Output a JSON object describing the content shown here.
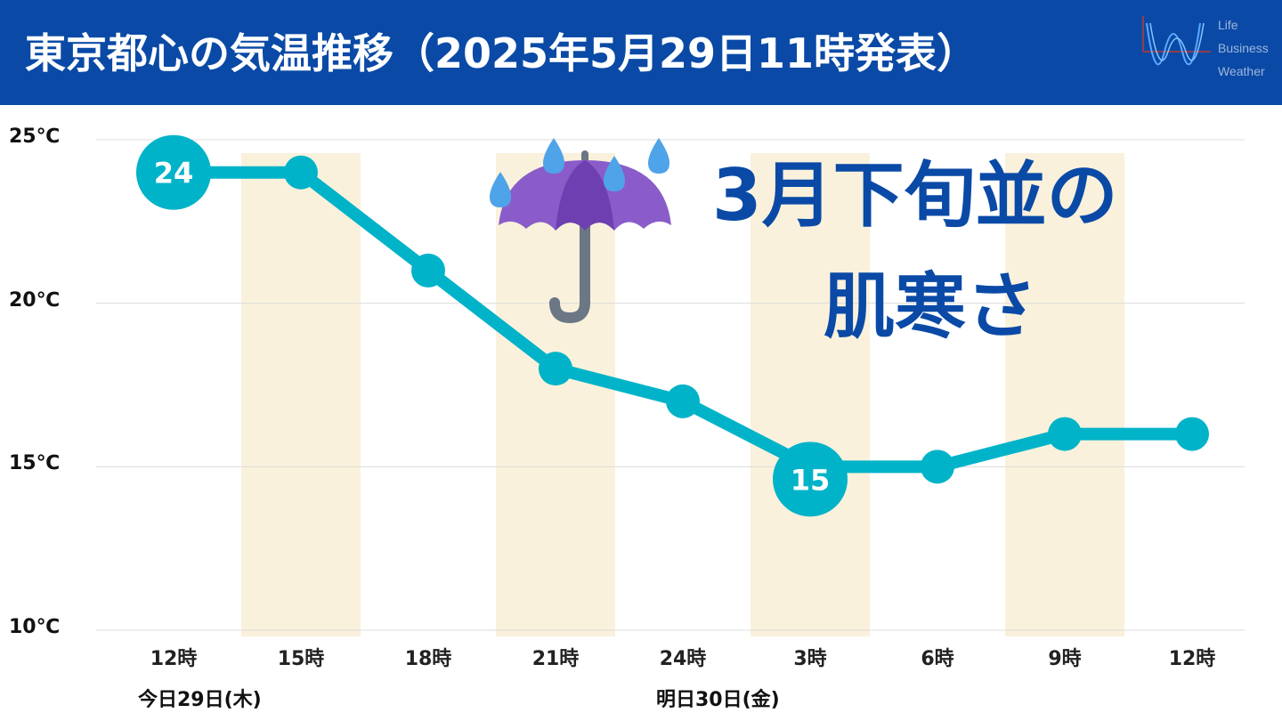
{
  "header": {
    "title": "東京都心の気温推移（2025年5月29日11時発表）",
    "logo_lines": [
      "Life",
      "Business",
      "Weather"
    ]
  },
  "headline": {
    "line1": "3月下旬並の",
    "line2": "肌寒さ"
  },
  "icons": {
    "umbrella": "umbrella-with-rain-icon"
  },
  "colors": {
    "header_bg": "#0a4aa6",
    "line": "#00b3c8",
    "band": "#faf1dc",
    "headline": "#0a4aa6"
  },
  "chart_data": {
    "type": "line",
    "categories": [
      "12時",
      "15時",
      "18時",
      "21時",
      "24時",
      "3時",
      "6時",
      "9時",
      "12時"
    ],
    "series": [
      {
        "values": [
          24,
          24,
          21,
          18,
          17,
          15,
          15,
          16,
          16
        ]
      }
    ],
    "y_ticks": [
      "25℃",
      "20℃",
      "15℃",
      "10℃"
    ],
    "ylim": [
      10,
      25
    ],
    "grid": true,
    "highlighted_points": [
      {
        "index": 0,
        "label": "24"
      },
      {
        "index": 5,
        "label": "15"
      }
    ],
    "shaded_categories": [
      1,
      3,
      5,
      7
    ],
    "day_labels": [
      {
        "text": "今日29日(木)",
        "at_index": 0
      },
      {
        "text": "明日30日(金)",
        "at_index": 4
      }
    ]
  }
}
